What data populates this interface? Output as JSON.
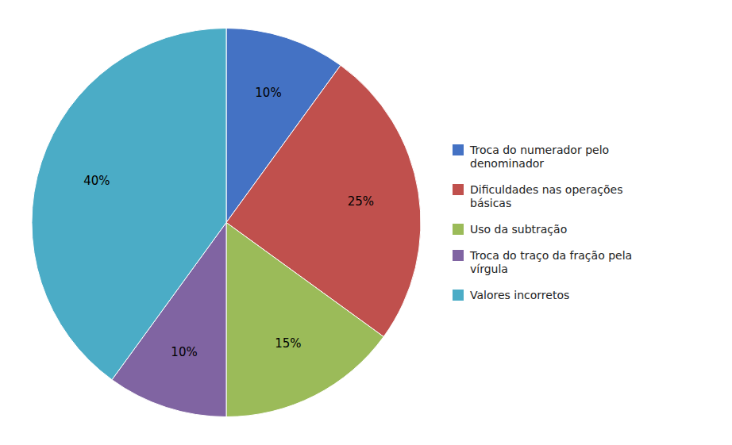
{
  "chart_data": {
    "type": "pie",
    "categories": [
      "Troca do numerador pelo\ndenominador",
      "Dificuldades nas operações\nbásicas",
      "Uso da subtração",
      "Troca do traço da fração pela\nvírgula",
      "Valores incorretos"
    ],
    "values": [
      10,
      25,
      15,
      10,
      40
    ],
    "value_labels": [
      "10%",
      "25%",
      "15%",
      "10%",
      "40%"
    ],
    "colors": [
      "#4472C4",
      "#C0504D",
      "#9BBB59",
      "#8064A2",
      "#4BACC6"
    ],
    "data_labels": true,
    "legend": "right"
  }
}
